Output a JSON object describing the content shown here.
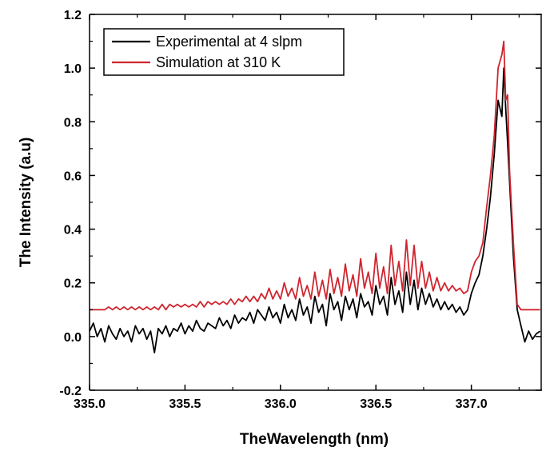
{
  "chart_data": {
    "type": "line",
    "xlabel": "TheWavelength (nm)",
    "ylabel": "The Intensity (a.u)",
    "xlim": [
      335.0,
      337.37
    ],
    "ylim": [
      -0.2,
      1.2
    ],
    "x_ticks": [
      335.0,
      335.5,
      336.0,
      336.5,
      337.0
    ],
    "x_tick_labels": [
      "335.0",
      "335.5",
      "336.0",
      "336.5",
      "337.0"
    ],
    "y_ticks": [
      -0.2,
      0.0,
      0.2,
      0.4,
      0.6,
      0.8,
      1.0,
      1.2
    ],
    "y_tick_labels": [
      "-0.2",
      "0.0",
      "0.2",
      "0.4",
      "0.6",
      "0.8",
      "1.0",
      "1.2"
    ],
    "grid": false,
    "legend_position": "top-left",
    "series": [
      {
        "name": "Experimental at 4 slpm",
        "color": "#000000",
        "x": [
          335.0,
          335.02,
          335.04,
          335.06,
          335.08,
          335.1,
          335.12,
          335.14,
          335.16,
          335.18,
          335.2,
          335.22,
          335.24,
          335.26,
          335.28,
          335.3,
          335.32,
          335.34,
          335.36,
          335.38,
          335.4,
          335.42,
          335.44,
          335.46,
          335.48,
          335.5,
          335.52,
          335.54,
          335.56,
          335.58,
          335.6,
          335.62,
          335.64,
          335.66,
          335.68,
          335.7,
          335.72,
          335.74,
          335.76,
          335.78,
          335.8,
          335.82,
          335.84,
          335.86,
          335.88,
          335.9,
          335.92,
          335.94,
          335.96,
          335.98,
          336.0,
          336.02,
          336.04,
          336.06,
          336.08,
          336.1,
          336.12,
          336.14,
          336.16,
          336.18,
          336.2,
          336.22,
          336.24,
          336.26,
          336.28,
          336.3,
          336.32,
          336.34,
          336.36,
          336.38,
          336.4,
          336.42,
          336.44,
          336.46,
          336.48,
          336.5,
          336.52,
          336.54,
          336.56,
          336.58,
          336.6,
          336.62,
          336.64,
          336.66,
          336.68,
          336.7,
          336.72,
          336.74,
          336.76,
          336.78,
          336.8,
          336.82,
          336.84,
          336.86,
          336.88,
          336.9,
          336.92,
          336.94,
          336.96,
          336.98,
          337.0,
          337.02,
          337.04,
          337.06,
          337.08,
          337.1,
          337.12,
          337.14,
          337.16,
          337.17,
          337.18,
          337.19,
          337.2,
          337.22,
          337.24,
          337.26,
          337.28,
          337.3,
          337.32,
          337.34,
          337.36
        ],
        "y": [
          0.02,
          0.05,
          0.0,
          0.03,
          -0.02,
          0.04,
          0.01,
          -0.01,
          0.03,
          0.0,
          0.02,
          -0.02,
          0.04,
          0.01,
          0.03,
          -0.01,
          0.02,
          -0.06,
          0.03,
          0.01,
          0.04,
          0.0,
          0.03,
          0.02,
          0.05,
          0.01,
          0.04,
          0.02,
          0.06,
          0.03,
          0.02,
          0.05,
          0.04,
          0.03,
          0.07,
          0.04,
          0.06,
          0.03,
          0.08,
          0.05,
          0.07,
          0.06,
          0.09,
          0.05,
          0.1,
          0.08,
          0.06,
          0.11,
          0.07,
          0.09,
          0.05,
          0.12,
          0.07,
          0.1,
          0.06,
          0.14,
          0.08,
          0.11,
          0.05,
          0.15,
          0.09,
          0.12,
          0.04,
          0.16,
          0.1,
          0.13,
          0.06,
          0.15,
          0.1,
          0.14,
          0.07,
          0.16,
          0.11,
          0.13,
          0.08,
          0.19,
          0.12,
          0.15,
          0.08,
          0.22,
          0.12,
          0.17,
          0.09,
          0.24,
          0.12,
          0.21,
          0.1,
          0.18,
          0.12,
          0.16,
          0.11,
          0.14,
          0.1,
          0.13,
          0.1,
          0.12,
          0.09,
          0.11,
          0.08,
          0.1,
          0.16,
          0.2,
          0.23,
          0.3,
          0.4,
          0.52,
          0.68,
          0.88,
          0.82,
          1.0,
          0.85,
          0.72,
          0.58,
          0.3,
          0.1,
          0.04,
          -0.02,
          0.02,
          -0.01,
          0.01,
          0.02
        ]
      },
      {
        "name": "Simulation at 310 K",
        "color": "#d0252f",
        "x": [
          335.0,
          335.02,
          335.04,
          335.06,
          335.08,
          335.1,
          335.12,
          335.14,
          335.16,
          335.18,
          335.2,
          335.22,
          335.24,
          335.26,
          335.28,
          335.3,
          335.32,
          335.34,
          335.36,
          335.38,
          335.4,
          335.42,
          335.44,
          335.46,
          335.48,
          335.5,
          335.52,
          335.54,
          335.56,
          335.58,
          335.6,
          335.62,
          335.64,
          335.66,
          335.68,
          335.7,
          335.72,
          335.74,
          335.76,
          335.78,
          335.8,
          335.82,
          335.84,
          335.86,
          335.88,
          335.9,
          335.92,
          335.94,
          335.96,
          335.98,
          336.0,
          336.02,
          336.04,
          336.06,
          336.08,
          336.1,
          336.12,
          336.14,
          336.16,
          336.18,
          336.2,
          336.22,
          336.24,
          336.26,
          336.28,
          336.3,
          336.32,
          336.34,
          336.36,
          336.38,
          336.4,
          336.42,
          336.44,
          336.46,
          336.48,
          336.5,
          336.52,
          336.54,
          336.56,
          336.58,
          336.6,
          336.62,
          336.64,
          336.66,
          336.68,
          336.7,
          336.72,
          336.74,
          336.76,
          336.78,
          336.8,
          336.82,
          336.84,
          336.86,
          336.88,
          336.9,
          336.92,
          336.94,
          336.96,
          336.98,
          337.0,
          337.02,
          337.04,
          337.06,
          337.08,
          337.1,
          337.12,
          337.14,
          337.16,
          337.17,
          337.18,
          337.19,
          337.2,
          337.22,
          337.24,
          337.26,
          337.28,
          337.3,
          337.32,
          337.34,
          337.36
        ],
        "y": [
          0.1,
          0.1,
          0.1,
          0.1,
          0.1,
          0.11,
          0.1,
          0.11,
          0.1,
          0.11,
          0.1,
          0.11,
          0.1,
          0.11,
          0.1,
          0.11,
          0.1,
          0.11,
          0.1,
          0.12,
          0.1,
          0.12,
          0.11,
          0.12,
          0.11,
          0.12,
          0.11,
          0.12,
          0.11,
          0.13,
          0.11,
          0.13,
          0.12,
          0.13,
          0.12,
          0.13,
          0.12,
          0.14,
          0.12,
          0.14,
          0.13,
          0.15,
          0.13,
          0.15,
          0.13,
          0.16,
          0.14,
          0.18,
          0.14,
          0.17,
          0.14,
          0.2,
          0.15,
          0.18,
          0.14,
          0.22,
          0.15,
          0.19,
          0.14,
          0.24,
          0.15,
          0.21,
          0.14,
          0.25,
          0.16,
          0.22,
          0.15,
          0.27,
          0.17,
          0.23,
          0.15,
          0.29,
          0.18,
          0.24,
          0.16,
          0.31,
          0.18,
          0.26,
          0.16,
          0.34,
          0.19,
          0.28,
          0.17,
          0.36,
          0.19,
          0.34,
          0.18,
          0.28,
          0.18,
          0.24,
          0.17,
          0.22,
          0.17,
          0.2,
          0.17,
          0.19,
          0.17,
          0.18,
          0.16,
          0.17,
          0.24,
          0.28,
          0.3,
          0.35,
          0.48,
          0.6,
          0.75,
          1.0,
          1.05,
          1.1,
          0.88,
          0.9,
          0.62,
          0.35,
          0.12,
          0.1,
          0.1,
          0.1,
          0.1,
          0.1,
          0.1
        ]
      }
    ]
  }
}
